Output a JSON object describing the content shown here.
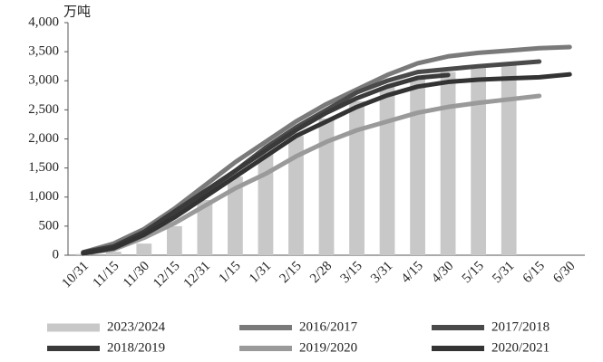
{
  "chart_data": {
    "type": "combo",
    "unit_label": "万吨",
    "categories": [
      "10/31",
      "11/15",
      "11/30",
      "12/15",
      "12/31",
      "1/15",
      "1/31",
      "2/15",
      "2/28",
      "3/15",
      "3/31",
      "4/15",
      "4/30",
      "5/15",
      "5/31",
      "6/15",
      "6/30"
    ],
    "series": [
      {
        "name": "2023/2024",
        "type": "bar",
        "color": "#c8c8c8",
        "values": [
          20,
          60,
          200,
          500,
          950,
          1350,
          1750,
          2050,
          2350,
          2650,
          2900,
          3050,
          3150,
          3230,
          3280,
          null,
          null
        ]
      },
      {
        "name": "2016/2017",
        "type": "line",
        "color": "#7a7a7a",
        "values": [
          50,
          200,
          450,
          800,
          1200,
          1600,
          1950,
          2300,
          2600,
          2850,
          3100,
          3300,
          3420,
          3480,
          3520,
          3560,
          3580
        ]
      },
      {
        "name": "2017/2018",
        "type": "line",
        "color": "#4a4a4a",
        "values": [
          40,
          130,
          380,
          700,
          1080,
          1450,
          1850,
          2200,
          2500,
          2800,
          3000,
          3150,
          3200,
          3250,
          3290,
          3330,
          null
        ]
      },
      {
        "name": "2018/2019",
        "type": "line",
        "color": "#3a3a3a",
        "values": [
          50,
          150,
          400,
          750,
          1100,
          1450,
          1800,
          2150,
          2450,
          2700,
          2900,
          3050,
          3100,
          null,
          null,
          null,
          null
        ]
      },
      {
        "name": "2019/2020",
        "type": "line",
        "color": "#9a9a9a",
        "values": [
          30,
          100,
          300,
          550,
          850,
          1150,
          1400,
          1700,
          1950,
          2150,
          2300,
          2450,
          2550,
          2620,
          2680,
          2740,
          null
        ]
      },
      {
        "name": "2020/2021",
        "type": "line",
        "color": "#333333",
        "values": [
          30,
          120,
          350,
          650,
          1000,
          1350,
          1700,
          2050,
          2300,
          2550,
          2750,
          2900,
          2980,
          3020,
          3040,
          3060,
          3110
        ]
      }
    ],
    "ylim": [
      0,
      4000
    ],
    "yticks": [
      0,
      500,
      {
        "value": 1000,
        "label": "1,000"
      },
      {
        "value": 1500,
        "label": "1,500"
      },
      {
        "value": 2000,
        "label": "2,000"
      },
      {
        "value": 2500,
        "label": "2,500"
      },
      {
        "value": 3000,
        "label": "3,000"
      },
      {
        "value": 3500,
        "label": "3,500"
      },
      {
        "value": 4000,
        "label": "4,000"
      }
    ]
  }
}
